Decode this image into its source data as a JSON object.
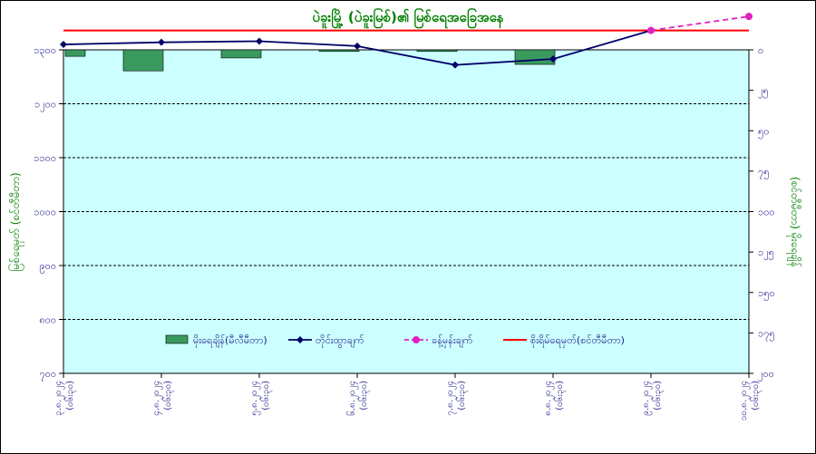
{
  "chart_data": {
    "type": "bar+line",
    "title": "ပဲခူးမြို့ (ပဲခူးမြစ်)၏ မြစ်ရေအခြေအနေ",
    "ylabel_left": "မြစ်ရေမှတ် (စင်တီမီတာ)",
    "ylabel_right": "(စင်တီမီတာ) မိုးရေချိန်",
    "left_axis": {
      "min": 700,
      "max": 1600,
      "ticks": [
        700,
        800,
        900,
        1000,
        1100,
        1200,
        1300
      ],
      "tick_labels": [
        "၇၀၀",
        "၈၀၀",
        "၉၀၀",
        "၁၀၀၀",
        "၁၁၀၀",
        "၁၂၀၀",
        "၁၃၀၀"
      ]
    },
    "right_axis": {
      "min": 0,
      "max": 200,
      "reversed": true,
      "ticks": [
        0,
        25,
        50,
        75,
        100,
        125,
        150,
        175,
        200
      ],
      "tick_labels": [
        "၀",
        "၂၅",
        "၅၀",
        "၇၅",
        "၁၀၀",
        "၁၂၅",
        "၁၅၀",
        "၁၇၅",
        "၂၀၀"
      ]
    },
    "categories": [
      "၃.၈.၂၀၂၄ (၀၆း၃၀)",
      "၄.၈.၂၀၂၄ (၀၆း၃၀)",
      "၅.၈.၂၀၂၄ (၀၆း၃၀)",
      "၆.၈.၂၀၂၄ (၀၆း၃၀)",
      "၇.၈.၂၀၂၄ (၀၆း၃၀)",
      "၈.၈.၂၀၂၄ (၀၆း၃၀)",
      "၉.၈.၂၀၂၄ (၀၆း၃၀)",
      "၁၀.၈.၂၀၂၄ (၀၆း၃၀)"
    ],
    "series": [
      {
        "name": "မိုးရေချိန်(မီလီမီတာ)",
        "kind": "bar",
        "axis": "right",
        "values": [
          4,
          13,
          5,
          1,
          1,
          9,
          null,
          null
        ],
        "color": "#3a9a5e"
      },
      {
        "name": "တိုင်းထွာချက်",
        "kind": "line",
        "axis": "left",
        "values": [
          1310,
          1314,
          1316,
          1307,
          1272,
          1283,
          1336,
          null
        ],
        "color": "#000066"
      },
      {
        "name": "ခန့်မှန်းချက်",
        "kind": "dashed-line",
        "axis": "left",
        "values": [
          null,
          null,
          null,
          null,
          null,
          null,
          1336,
          1362
        ],
        "color": "#e020c0"
      },
      {
        "name": "စိုးရိမ်ရေမှတ်(စင်တီမီတာ)",
        "kind": "hline",
        "axis": "left",
        "value": 1336,
        "color": "#ff0000"
      }
    ],
    "grid": true,
    "legend_position": "bottom-inside"
  },
  "colors": {
    "plot_bg": "#ccffff",
    "tick_text": "#1a1a8a",
    "title": "#008000"
  }
}
